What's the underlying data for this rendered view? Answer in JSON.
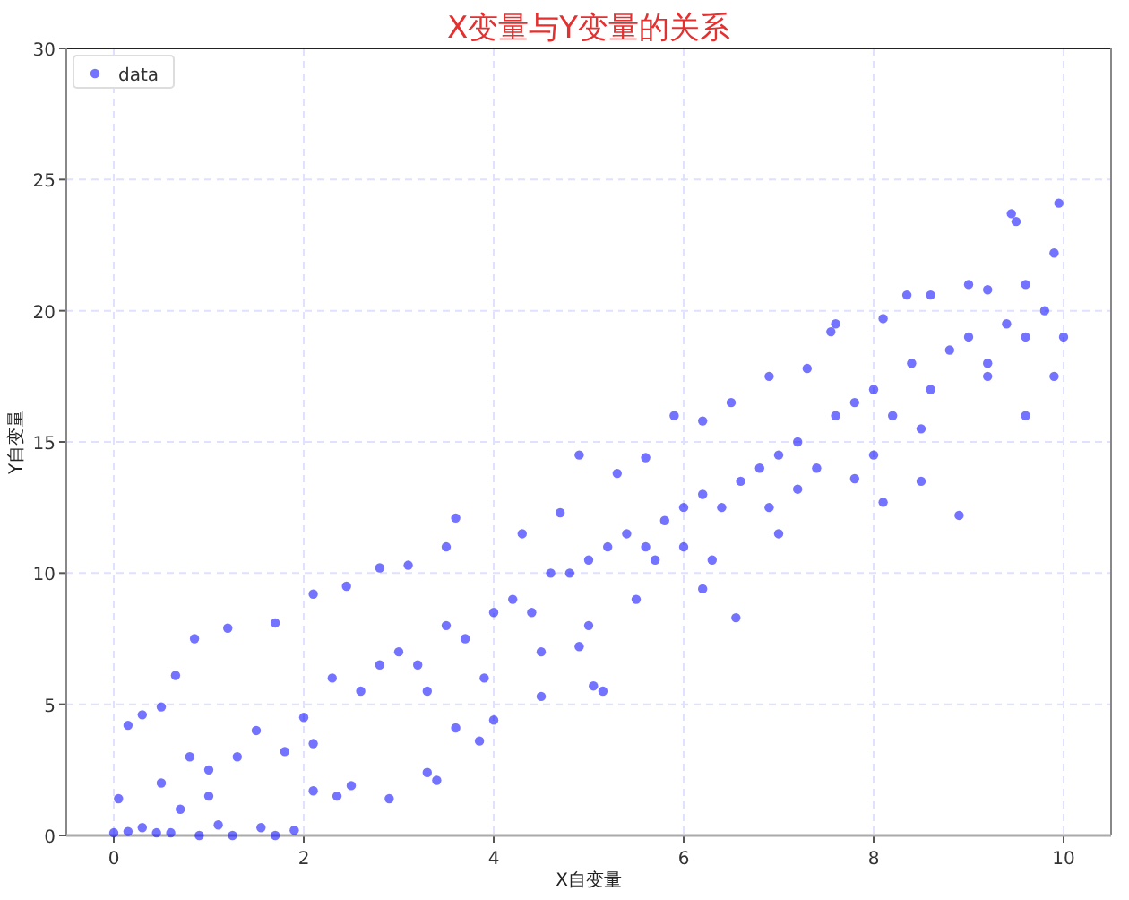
{
  "chart_data": {
    "type": "scatter",
    "title": "X变量与Y变量的关系",
    "xlabel": "X自变量",
    "ylabel": "Y自变量",
    "xlim": [
      -0.5,
      10.5
    ],
    "ylim": [
      0,
      30
    ],
    "xticks": [
      0,
      2,
      4,
      6,
      8,
      10
    ],
    "yticks": [
      0,
      5,
      10,
      15,
      20,
      25,
      30
    ],
    "grid": true,
    "legend": "top left",
    "marker": "circle",
    "series": [
      {
        "name": "data",
        "color": "#0000ff",
        "x": [
          0,
          0.05,
          0.15,
          0.3,
          0.5,
          0.65,
          0.85,
          1.2,
          1.7,
          2.1,
          2.45,
          2.8,
          3.1,
          3.5,
          3.6,
          4.3,
          4.7,
          4.9,
          5.3,
          5.6,
          5.9,
          6.2,
          6.5,
          6.9,
          7.3,
          7.55,
          7.6,
          8.1,
          8.35,
          8.6,
          9.0,
          9.2,
          9.45,
          9.5,
          9.95,
          9.9,
          10.0,
          9.9,
          9.6,
          9.2,
          8.9,
          8.5,
          8.1,
          7.8,
          7.2,
          6.9,
          6.55,
          6.2,
          5.7,
          5.15,
          5.05,
          4.9,
          4.5,
          4.0,
          3.85,
          3.6,
          3.4,
          3.3,
          2.9,
          2.5,
          2.35,
          2.1,
          1.9,
          1.7,
          1.55,
          1.25,
          1.1,
          0.9,
          0.6,
          0.45,
          0.3,
          0.15,
          0.5,
          0.8,
          1.0,
          1.3,
          1.5,
          1.8,
          2.0,
          2.3,
          2.6,
          2.8,
          3.0,
          3.2,
          3.5,
          3.7,
          4.0,
          4.2,
          4.4,
          4.6,
          4.8,
          5.0,
          5.2,
          5.4,
          5.6,
          5.8,
          6.0,
          6.0,
          6.2,
          6.4,
          6.6,
          6.8,
          7.0,
          7.2,
          7.4,
          7.6,
          7.8,
          8.0,
          8.2,
          8.4,
          8.6,
          8.8,
          9.0,
          9.2,
          9.4,
          9.6,
          9.8,
          5.5,
          6.3,
          3.3,
          2.1,
          1.0,
          7.0,
          8.0,
          4.5,
          0.7,
          9.6,
          8.5,
          5.0,
          3.9
        ],
        "values": [
          0.1,
          1.4,
          4.2,
          4.6,
          4.9,
          6.1,
          7.5,
          7.9,
          8.1,
          9.2,
          9.5,
          10.2,
          10.3,
          11,
          12.1,
          11.5,
          12.3,
          14.5,
          13.8,
          14.4,
          16,
          15.8,
          16.5,
          17.5,
          17.8,
          19.2,
          19.5,
          19.7,
          20.6,
          20.6,
          21,
          20.8,
          23.7,
          23.4,
          24.1,
          22.2,
          19,
          17.5,
          16,
          17.5,
          12.2,
          13.5,
          12.7,
          13.6,
          13.2,
          12.5,
          8.3,
          9.4,
          10.5,
          5.5,
          5.7,
          7.2,
          5.3,
          4.4,
          3.6,
          4.1,
          2.1,
          2.4,
          1.4,
          1.9,
          1.5,
          1.7,
          0.2,
          0,
          0.3,
          0,
          0.4,
          0,
          0.1,
          0.1,
          0.3,
          0.15,
          2,
          3,
          2.5,
          3,
          4,
          3.2,
          4.5,
          6,
          5.5,
          6.5,
          7,
          6.5,
          8,
          7.5,
          8.5,
          9,
          8.5,
          10,
          10,
          10.5,
          11,
          11.5,
          11,
          12,
          12.5,
          11,
          13,
          12.5,
          13.5,
          14,
          14.5,
          15,
          14,
          16,
          16.5,
          17,
          16,
          18,
          17,
          18.5,
          19,
          18,
          19.5,
          19,
          20,
          9,
          10.5,
          5.5,
          3.5,
          1.5,
          11.5,
          14.5,
          7,
          1,
          21,
          15.5,
          8,
          6
        ]
      }
    ]
  }
}
